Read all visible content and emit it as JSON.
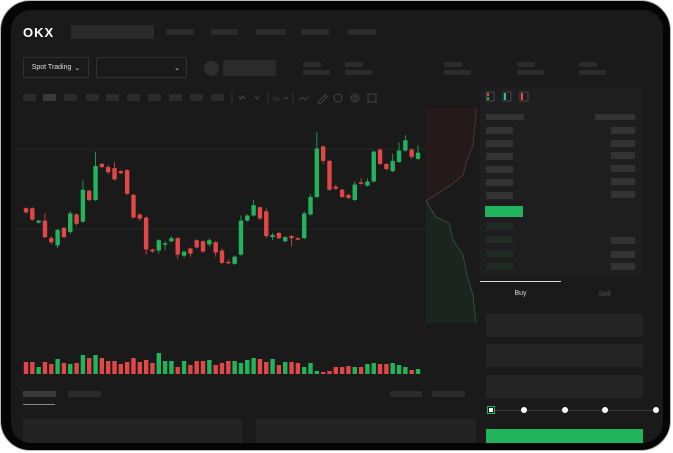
{
  "brand": {
    "logo_text": "OKX"
  },
  "market": {
    "mode_label": "Spot Trading",
    "mode_chevron": "chevron-down-icon",
    "pair_chevron": "chevron-down-icon"
  },
  "order_panel": {
    "tabs": [
      {
        "label": "Buy",
        "active": true
      },
      {
        "label": "Sell",
        "active": false
      }
    ],
    "slider_percent": 0
  },
  "colors": {
    "up": "#22b45c",
    "down": "#e04848",
    "background": "#1a1a1a",
    "panel": "#1e1e1e"
  },
  "chart_data": {
    "type": "candlestick",
    "candles": [
      [
        97,
        98,
        92,
        93
      ],
      [
        97,
        98,
        85,
        86
      ],
      [
        83,
        86,
        82,
        85
      ],
      [
        85,
        92,
        68,
        69
      ],
      [
        68,
        70,
        62,
        64
      ],
      [
        61,
        77,
        58,
        76
      ],
      [
        78,
        79,
        68,
        69
      ],
      [
        74,
        94,
        72,
        92
      ],
      [
        91,
        92,
        80,
        82
      ],
      [
        84,
        124,
        83,
        115
      ],
      [
        114,
        115,
        104,
        105
      ],
      [
        105,
        152,
        104,
        138
      ],
      [
        140,
        141,
        136,
        137
      ],
      [
        137,
        139,
        130,
        132
      ],
      [
        136,
        142,
        124,
        125
      ],
      [
        133,
        134,
        130,
        131
      ],
      [
        134,
        135,
        110,
        111
      ],
      [
        110,
        111,
        87,
        88
      ],
      [
        91,
        92,
        85,
        87
      ],
      [
        88,
        89,
        52,
        57
      ],
      [
        57,
        58,
        54,
        55
      ],
      [
        56,
        67,
        53,
        66
      ],
      [
        62,
        65,
        56,
        63
      ],
      [
        65,
        70,
        64,
        68
      ],
      [
        68,
        69,
        48,
        52
      ],
      [
        51,
        56,
        49,
        55
      ],
      [
        58,
        59,
        50,
        53
      ],
      [
        66,
        67,
        58,
        59
      ],
      [
        65,
        66,
        54,
        55
      ],
      [
        62,
        68,
        60,
        66
      ],
      [
        64,
        65,
        50,
        54
      ],
      [
        56,
        58,
        43,
        44
      ],
      [
        45,
        47,
        43,
        44
      ],
      [
        43,
        51,
        42,
        50
      ],
      [
        52,
        90,
        51,
        85
      ],
      [
        85,
        91,
        84,
        90
      ],
      [
        90,
        105,
        89,
        100
      ],
      [
        98,
        99,
        86,
        87
      ],
      [
        94,
        97,
        68,
        70
      ],
      [
        69,
        73,
        66,
        71
      ],
      [
        73,
        74,
        67,
        68
      ],
      [
        65,
        70,
        64,
        69
      ],
      [
        70,
        71,
        60,
        68
      ],
      [
        68,
        69,
        66,
        67
      ],
      [
        68,
        94,
        67,
        92
      ],
      [
        91,
        111,
        90,
        108
      ],
      [
        108,
        171,
        107,
        155
      ],
      [
        157,
        158,
        140,
        143
      ],
      [
        143,
        144,
        114,
        115
      ],
      [
        118,
        120,
        115,
        116
      ],
      [
        115,
        116,
        107,
        108
      ],
      [
        110,
        111,
        106,
        107
      ],
      [
        105,
        123,
        104,
        120
      ],
      [
        122,
        126,
        120,
        121
      ],
      [
        119,
        126,
        118,
        123
      ],
      [
        123,
        153,
        122,
        152
      ],
      [
        154,
        155,
        139,
        140
      ],
      [
        140,
        141,
        134,
        135
      ],
      [
        133,
        150,
        132,
        143
      ],
      [
        142,
        161,
        141,
        153
      ],
      [
        153,
        168,
        152,
        163
      ],
      [
        154,
        155,
        145,
        147
      ],
      [
        145,
        158,
        144,
        151
      ]
    ],
    "volume": [
      12,
      12,
      7,
      12,
      10,
      15,
      11,
      10,
      11,
      19,
      16,
      19,
      16,
      13,
      13,
      10,
      12,
      16,
      12,
      14,
      11,
      21,
      13,
      13,
      7,
      13,
      9,
      13,
      13,
      14,
      9,
      11,
      13,
      13,
      11,
      14,
      16,
      15,
      12,
      15,
      9,
      12,
      12,
      11,
      7,
      11,
      3,
      2,
      3,
      7,
      7,
      8,
      7,
      7,
      10,
      11,
      10,
      10,
      11,
      9,
      7,
      4,
      5
    ],
    "grid": true
  }
}
